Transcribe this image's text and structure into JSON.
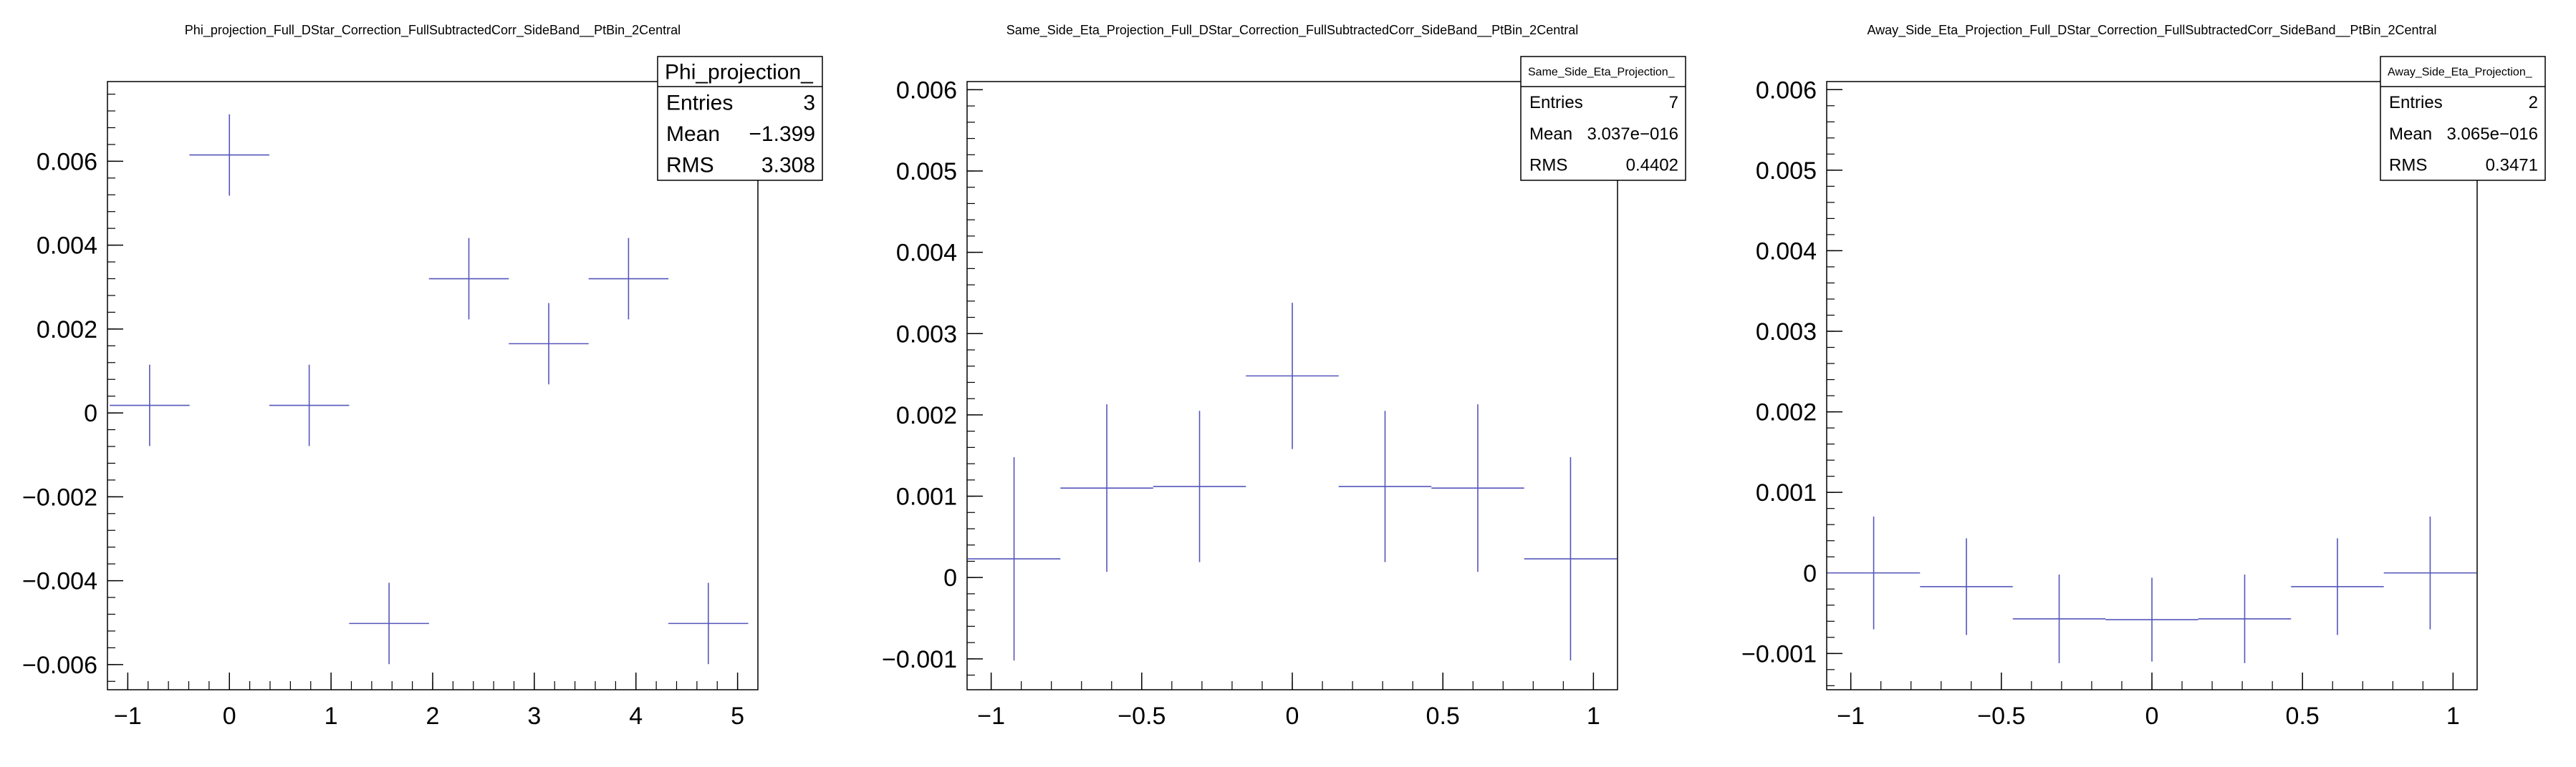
{
  "colors": {
    "marker": "#5555bb",
    "frame": "#000000",
    "background": "#ffffff"
  },
  "chart_data": [
    {
      "type": "scatter",
      "title": "Phi_projection_Full_DStar_Correction_FullSubtractedCorr_SideBand__PtBin_2Central",
      "xlabel": "",
      "ylabel": "",
      "xlim": [
        -1.2,
        5.2
      ],
      "ylim": [
        -0.0066,
        0.0079
      ],
      "xticks": [
        -1,
        0,
        1,
        2,
        3,
        4,
        5
      ],
      "yticks": [
        -0.006,
        -0.004,
        -0.002,
        0,
        0.002,
        0.004,
        0.006
      ],
      "xtick_labels": [
        "−1",
        "0",
        "1",
        "2",
        "3",
        "4",
        "5"
      ],
      "ytick_labels": [
        "−0.006",
        "−0.004",
        "−0.002",
        "0",
        "0.002",
        "0.004",
        "0.006"
      ],
      "grid": false,
      "points": [
        {
          "x": -0.785,
          "xerr": 0.393,
          "y": 0.00018,
          "yerr": 0.00097
        },
        {
          "x": 0.0,
          "xerr": 0.393,
          "y": 0.00615,
          "yerr": 0.00097
        },
        {
          "x": 0.785,
          "xerr": 0.393,
          "y": 0.00018,
          "yerr": 0.00097
        },
        {
          "x": 1.571,
          "xerr": 0.393,
          "y": -0.00502,
          "yerr": 0.00097
        },
        {
          "x": 2.356,
          "xerr": 0.393,
          "y": 0.0032,
          "yerr": 0.00097
        },
        {
          "x": 3.142,
          "xerr": 0.393,
          "y": 0.00165,
          "yerr": 0.00097
        },
        {
          "x": 3.927,
          "xerr": 0.393,
          "y": 0.0032,
          "yerr": 0.00097
        },
        {
          "x": 4.712,
          "xerr": 0.393,
          "y": -0.00502,
          "yerr": 0.00097
        }
      ],
      "stats": {
        "name": "Phi_projection_",
        "rows": [
          {
            "label": "Entries",
            "value": "3"
          },
          {
            "label": "Mean",
            "value": "−1.399"
          },
          {
            "label": "RMS",
            "value": "3.308"
          }
        ]
      }
    },
    {
      "type": "scatter",
      "title": "Same_Side_Eta_Projection_Full_DStar_Correction_FullSubtractedCorr_SideBand__PtBin_2Central",
      "xlabel": "",
      "ylabel": "",
      "xlim": [
        -1.08,
        1.08
      ],
      "ylim": [
        -0.00138,
        0.0061
      ],
      "xticks": [
        -1,
        -0.5,
        0,
        0.5,
        1
      ],
      "yticks": [
        -0.001,
        0,
        0.001,
        0.002,
        0.003,
        0.004,
        0.005,
        0.006
      ],
      "xtick_labels": [
        "−1",
        "−0.5",
        "0",
        "0.5",
        "1"
      ],
      "ytick_labels": [
        "−0.001",
        "0",
        "0.001",
        "0.002",
        "0.003",
        "0.004",
        "0.005",
        "0.006"
      ],
      "grid": false,
      "points": [
        {
          "x": -0.924,
          "xerr": 0.154,
          "y": 0.00023,
          "yerr": 0.00125
        },
        {
          "x": -0.616,
          "xerr": 0.154,
          "y": 0.0011,
          "yerr": 0.00103
        },
        {
          "x": -0.308,
          "xerr": 0.154,
          "y": 0.00112,
          "yerr": 0.00093
        },
        {
          "x": 0.0,
          "xerr": 0.154,
          "y": 0.00248,
          "yerr": 0.0009
        },
        {
          "x": 0.308,
          "xerr": 0.154,
          "y": 0.00112,
          "yerr": 0.00093
        },
        {
          "x": 0.616,
          "xerr": 0.154,
          "y": 0.0011,
          "yerr": 0.00103
        },
        {
          "x": 0.924,
          "xerr": 0.154,
          "y": 0.00023,
          "yerr": 0.00125
        }
      ],
      "stats": {
        "name": "Same_Side_Eta_Projection_",
        "rows": [
          {
            "label": "Entries",
            "value": "7"
          },
          {
            "label": "Mean",
            "value": "3.037e−016"
          },
          {
            "label": "RMS",
            "value": "0.4402"
          }
        ]
      }
    },
    {
      "type": "scatter",
      "title": "Away_Side_Eta_Projection_Full_DStar_Correction_FullSubtractedCorr_SideBand__PtBin_2Central",
      "xlabel": "",
      "ylabel": "",
      "xlim": [
        -1.08,
        1.08
      ],
      "ylim": [
        -0.00145,
        0.0061
      ],
      "xticks": [
        -1,
        -0.5,
        0,
        0.5,
        1
      ],
      "yticks": [
        -0.001,
        0,
        0.001,
        0.002,
        0.003,
        0.004,
        0.005,
        0.006
      ],
      "xtick_labels": [
        "−1",
        "−0.5",
        "0",
        "0.5",
        "1"
      ],
      "ytick_labels": [
        "−0.001",
        "0",
        "0.001",
        "0.002",
        "0.003",
        "0.004",
        "0.005",
        "0.006"
      ],
      "grid": false,
      "points": [
        {
          "x": -0.924,
          "xerr": 0.154,
          "y": 0.0,
          "yerr": 0.0007
        },
        {
          "x": -0.616,
          "xerr": 0.154,
          "y": -0.00017,
          "yerr": 0.0006
        },
        {
          "x": -0.308,
          "xerr": 0.154,
          "y": -0.00057,
          "yerr": 0.00055
        },
        {
          "x": 0.0,
          "xerr": 0.154,
          "y": -0.00058,
          "yerr": 0.00052
        },
        {
          "x": 0.308,
          "xerr": 0.154,
          "y": -0.00057,
          "yerr": 0.00055
        },
        {
          "x": 0.616,
          "xerr": 0.154,
          "y": -0.00017,
          "yerr": 0.0006
        },
        {
          "x": 0.924,
          "xerr": 0.154,
          "y": 0.0,
          "yerr": 0.0007
        }
      ],
      "stats": {
        "name": "Away_Side_Eta_Projection_",
        "rows": [
          {
            "label": "Entries",
            "value": "2"
          },
          {
            "label": "Mean",
            "value": "3.065e−016"
          },
          {
            "label": "RMS",
            "value": "0.3471"
          }
        ]
      }
    }
  ]
}
